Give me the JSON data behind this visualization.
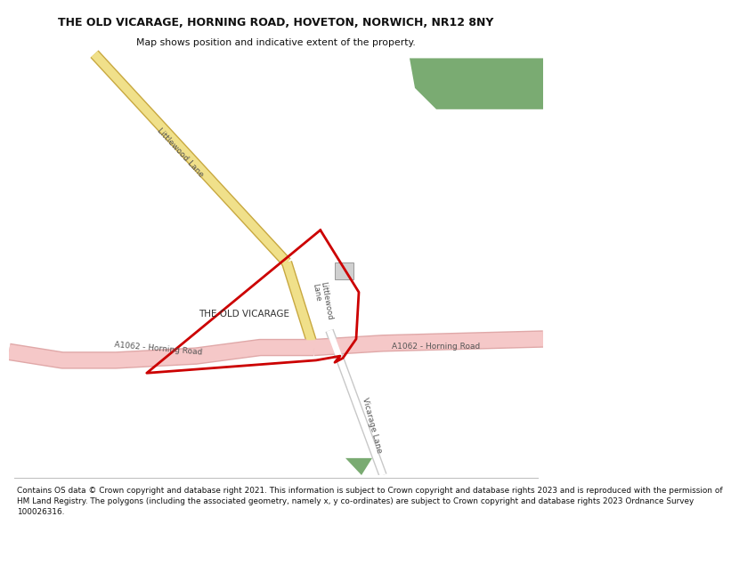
{
  "title": "THE OLD VICARAGE, HORNING ROAD, HOVETON, NORWICH, NR12 8NY",
  "subtitle": "Map shows position and indicative extent of the property.",
  "footer_text": "Contains OS data © Crown copyright and database right 2021. This information is subject to Crown copyright and database rights 2023 and is reproduced with the permission of HM Land Registry. The polygons (including the associated geometry, namely x, y co-ordinates) are subject to Crown copyright and database rights 2023 Ordnance Survey 100026316.",
  "road_yellow_fill": "#f0e08a",
  "road_yellow_border": "#c8a840",
  "road_pink_fill": "#f5c8c8",
  "road_pink_border": "#e0a8a8",
  "road_white_fill": "#ffffff",
  "road_white_border": "#c8c8c8",
  "green_color": "#7aab72",
  "red_color": "#cc0000",
  "map_bg": "#ffffff",
  "text_road": "#555555",
  "text_dark": "#333333",
  "title_color": "#111111"
}
